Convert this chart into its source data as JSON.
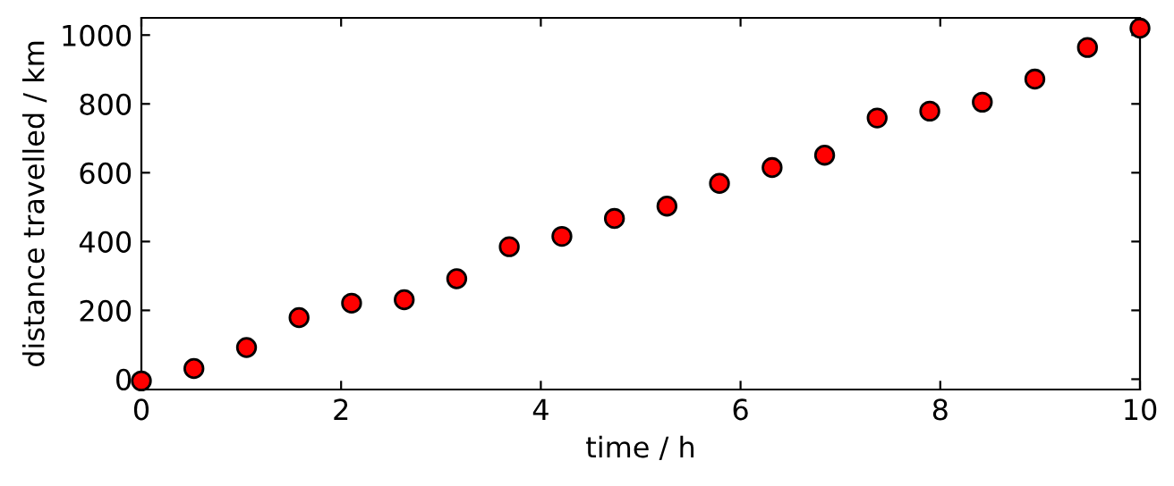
{
  "chart_data": {
    "type": "scatter",
    "xlabel": "time / h",
    "ylabel": "distance travelled / km",
    "x": [
      0,
      0.526,
      1.053,
      1.579,
      2.105,
      2.632,
      3.158,
      3.684,
      4.211,
      4.737,
      5.263,
      5.789,
      6.316,
      6.842,
      7.368,
      7.895,
      8.421,
      8.947,
      9.474,
      10
    ],
    "series": [
      {
        "color": "#ff0000",
        "values": [
          -5,
          31,
          92,
          179,
          221,
          231,
          292,
          385,
          415,
          467,
          503,
          569,
          615,
          651,
          759,
          779,
          805,
          872,
          964,
          1020
        ]
      }
    ],
    "xlim": [
      0,
      10
    ],
    "ylim": [
      -30,
      1050
    ],
    "xticks": [
      0,
      2,
      4,
      6,
      8,
      10
    ],
    "yticks": [
      0,
      200,
      400,
      600,
      800,
      1000
    ],
    "marker": "circle",
    "grid": false,
    "legend": false
  }
}
